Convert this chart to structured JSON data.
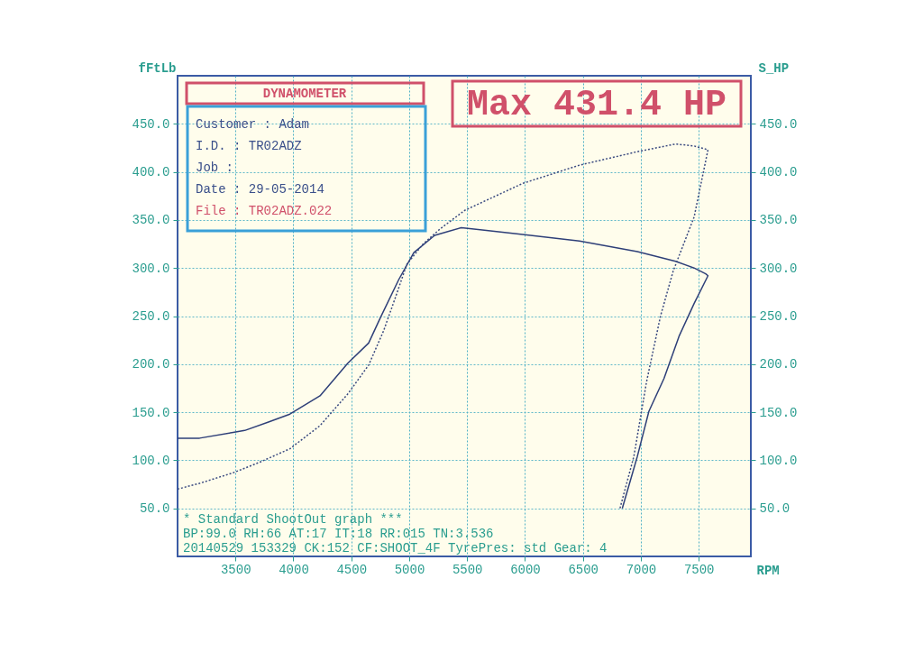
{
  "chart_data": {
    "type": "line",
    "xlabel": "RPM",
    "ylabel": "fFtLb",
    "y2label": "S_HP",
    "xlim": [
      3000,
      7950
    ],
    "xticks": [
      3500,
      4000,
      4500,
      5000,
      5500,
      6000,
      6500,
      7000,
      7500
    ],
    "ylim": [
      0,
      500
    ],
    "yticks": [
      {
        "value": 50,
        "label": "50.0"
      },
      {
        "value": 100,
        "label": "100.0"
      },
      {
        "value": 150,
        "label": "150.0"
      },
      {
        "value": 200,
        "label": "200.0"
      },
      {
        "value": 250,
        "label": "250.0"
      },
      {
        "value": 300,
        "label": "300.0"
      },
      {
        "value": 350,
        "label": "350.0"
      },
      {
        "value": 400,
        "label": "400.0"
      },
      {
        "value": 450,
        "label": "450.0"
      }
    ],
    "y2lim": [
      0,
      500
    ],
    "y2ticks": [
      {
        "value": 50,
        "label": "50.0"
      },
      {
        "value": 100,
        "label": "100.0"
      },
      {
        "value": 150,
        "label": "150.0"
      },
      {
        "value": 200,
        "label": "200.0"
      },
      {
        "value": 250,
        "label": "250.0"
      },
      {
        "value": 300,
        "label": "300.0"
      },
      {
        "value": 350,
        "label": "350.0"
      },
      {
        "value": 400,
        "label": "400.0"
      },
      {
        "value": 450,
        "label": "450.0"
      }
    ],
    "grid": true,
    "marker": "none",
    "series": [
      {
        "color": "#2e3f78",
        "line_style": "solid",
        "x": [
          3000,
          3190,
          3480,
          3580,
          3790,
          3970,
          4230,
          4470,
          4650,
          4750,
          4910,
          5040,
          5220,
          5450,
          5980,
          6470,
          6970,
          7300,
          7460,
          7560,
          7580,
          7460,
          7330,
          7200,
          7070,
          6970,
          6840
        ],
        "values": [
          123,
          123,
          129,
          131,
          140,
          148,
          167,
          201,
          222,
          248,
          288,
          316,
          334,
          342,
          335,
          328,
          317,
          307,
          300,
          294,
          292,
          263,
          229,
          185,
          151,
          104,
          50
        ]
      },
      {
        "color": "#3a4a80",
        "line_style": "dotted",
        "axis": "y2",
        "x": [
          3000,
          3190,
          3480,
          3710,
          3970,
          4230,
          4470,
          4650,
          4780,
          4880,
          4980,
          5120,
          5270,
          5480,
          5980,
          6470,
          6970,
          7300,
          7460,
          7580,
          7460,
          7280,
          7170,
          7050,
          6940,
          6820
        ],
        "values": [
          70,
          76,
          87,
          98,
          112,
          136,
          169,
          199,
          235,
          269,
          304,
          325,
          341,
          360,
          388,
          407,
          421,
          429,
          427,
          423,
          353,
          297,
          250,
          182,
          104,
          50
        ]
      }
    ],
    "annotations": [
      "DYNAMOMETER",
      "Max 431.4 HP",
      "Customer : Adam",
      "I.D.     : TR02ADZ",
      "Job      :",
      "Date     : 29-05-2014",
      "File     : TR02ADZ.022",
      "* Standard ShootOut graph ***",
      "BP:99.0  RH:66 AT:17 IT:18  RR:015 TN:3.536",
      "20140529 153329 CK:152 CF:SHOOT_4F TyrePres: std      Gear: 4"
    ]
  }
}
